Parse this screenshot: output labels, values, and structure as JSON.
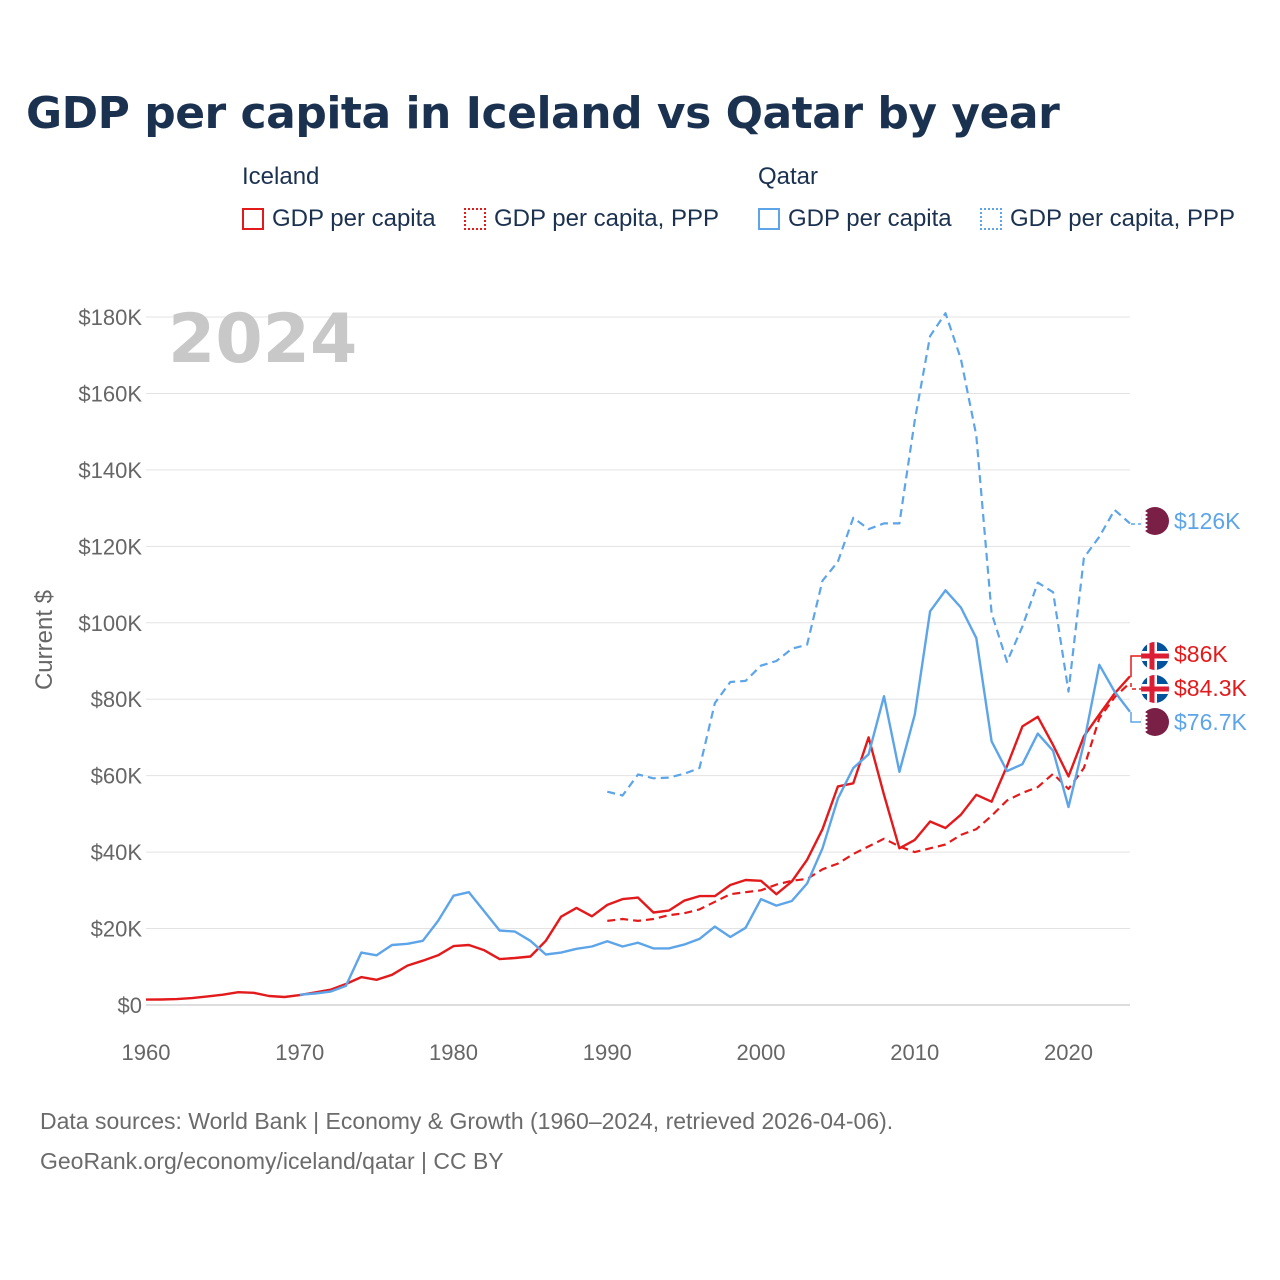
{
  "title": "GDP per capita in Iceland vs Qatar by year",
  "legend": {
    "iceland": {
      "name": "Iceland",
      "items": [
        "GDP per capita",
        "GDP per capita, PPP"
      ],
      "color": "#e31a1c"
    },
    "qatar": {
      "name": "Qatar",
      "items": [
        "GDP per capita",
        "GDP per capita, PPP"
      ],
      "color": "#5da5e8"
    }
  },
  "year_label": "2024",
  "footer": {
    "line1": "Data sources: World Bank | Economy & Growth (1960–2024, retrieved 2026-04-06).",
    "line2": "GeoRank.org/economy/iceland/qatar | CC BY"
  },
  "end_labels": {
    "qatar_ppp": "$126K",
    "iceland_gdp": "$86K",
    "iceland_ppp": "$84.3K",
    "qatar_gdp": "$76.7K"
  },
  "chart_data": {
    "type": "line",
    "title": "GDP per capita in Iceland vs Qatar by year",
    "xlabel": "",
    "ylabel": "Current $",
    "xlim": [
      1960,
      2024
    ],
    "ylim": [
      0,
      180000
    ],
    "x_ticks": [
      1960,
      1970,
      1980,
      1990,
      2000,
      2010,
      2020
    ],
    "y_ticks": [
      0,
      20000,
      40000,
      60000,
      80000,
      100000,
      120000,
      140000,
      160000,
      180000
    ],
    "y_tick_labels": [
      "$0",
      "$20K",
      "$40K",
      "$60K",
      "$80K",
      "$100K",
      "$120K",
      "$140K",
      "$160K",
      "$180K"
    ],
    "grid": true,
    "series": [
      {
        "name": "Iceland — GDP per capita",
        "color": "#e31a1c",
        "dash": "solid",
        "start_year": 1960,
        "values": [
          1400,
          1450,
          1550,
          1800,
          2250,
          2700,
          3350,
          3200,
          2350,
          2100,
          2600,
          3300,
          4000,
          5500,
          7300,
          6600,
          7900,
          10300,
          11600,
          13000,
          15400,
          15700,
          14300,
          12000,
          12300,
          12700,
          16800,
          23100,
          25400,
          23200,
          26200,
          27700,
          28100,
          24200,
          24700,
          27300,
          28500,
          28500,
          31400,
          32700,
          32500,
          29000,
          32300,
          38000,
          46000,
          57200,
          58000,
          70000,
          55000,
          41000,
          43200,
          48000,
          46300,
          49800,
          55000,
          53200,
          62500,
          72900,
          75400,
          68000,
          59800,
          70300,
          76000,
          81500,
          86000
        ]
      },
      {
        "name": "Iceland — GDP per capita, PPP",
        "color": "#e31a1c",
        "dash": "dashed",
        "start_year": 1990,
        "values": [
          22000,
          22500,
          22000,
          22500,
          23500,
          24000,
          25000,
          27000,
          29000,
          29500,
          30000,
          31500,
          32500,
          33000,
          35500,
          37000,
          39500,
          41500,
          43500,
          41500,
          40000,
          41000,
          42000,
          44500,
          46000,
          49500,
          53500,
          55500,
          57000,
          60500,
          56500,
          62000,
          75000,
          80500,
          84300
        ]
      },
      {
        "name": "Qatar — GDP per capita",
        "color": "#5da5e8",
        "dash": "solid",
        "start_year": 1970,
        "values": [
          2700,
          3000,
          3500,
          5000,
          13700,
          13000,
          15700,
          16000,
          16800,
          22000,
          28600,
          29500,
          24500,
          19500,
          19200,
          16800,
          13200,
          13700,
          14700,
          15300,
          16700,
          15300,
          16300,
          14800,
          14800,
          15800,
          17300,
          20500,
          17800,
          20200,
          27700,
          26000,
          27200,
          31800,
          41000,
          54000,
          62000,
          65600,
          80800,
          61000,
          76000,
          103000,
          108500,
          104000,
          96000,
          69000,
          61200,
          63000,
          71000,
          66500,
          51800,
          68500,
          89000,
          82000,
          76700
        ]
      },
      {
        "name": "Qatar — GDP per capita, PPP",
        "color": "#5da5e8",
        "dash": "dashed",
        "start_year": 1990,
        "values": [
          55800,
          54800,
          60300,
          59300,
          59500,
          60500,
          62000,
          79000,
          84500,
          84800,
          88800,
          90000,
          93200,
          94300,
          111000,
          116000,
          127500,
          124500,
          126000,
          126000,
          153000,
          175000,
          181000,
          169000,
          149000,
          102500,
          89800,
          99000,
          110500,
          108000,
          82000,
          117000,
          122500,
          129500,
          126000
        ]
      }
    ]
  }
}
